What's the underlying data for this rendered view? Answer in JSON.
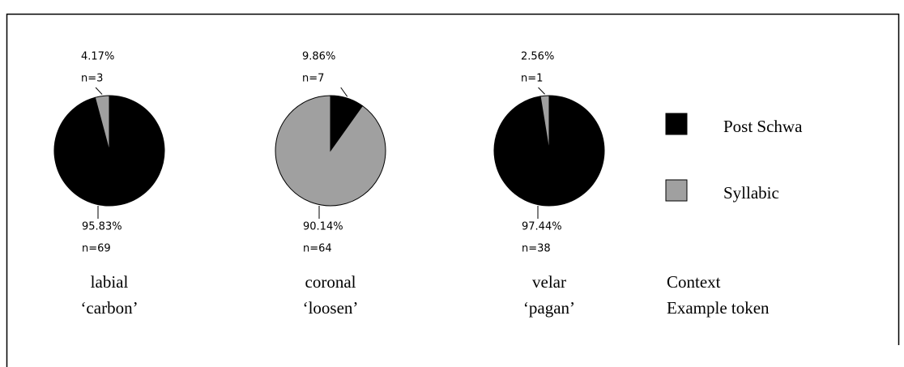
{
  "chart_data": [
    {
      "type": "pie",
      "context": "labial",
      "example": "‘carbon’",
      "values": [
        95.83,
        4.17
      ],
      "value_labels": [
        "95.83%",
        "4.17%"
      ],
      "n_labels": [
        "n=69",
        "n=3"
      ]
    },
    {
      "type": "pie",
      "context": "coronal",
      "example": "‘loosen’",
      "values": [
        9.86,
        90.14
      ],
      "value_labels": [
        "9.86%",
        "90.14%"
      ],
      "n_labels": [
        "n=7",
        "n=64"
      ]
    },
    {
      "type": "pie",
      "context": "velar",
      "example": "‘pagan’",
      "values": [
        97.44,
        2.56
      ],
      "value_labels": [
        "97.44%",
        "2.56%"
      ],
      "n_labels": [
        "n=38",
        "n=1"
      ]
    }
  ],
  "legend": {
    "items": [
      {
        "name": "Post Schwa",
        "color": "#000000"
      },
      {
        "name": "Syllabic",
        "color": "#a0a0a0"
      }
    ]
  },
  "context_title": "Context",
  "example_title": "Example token"
}
